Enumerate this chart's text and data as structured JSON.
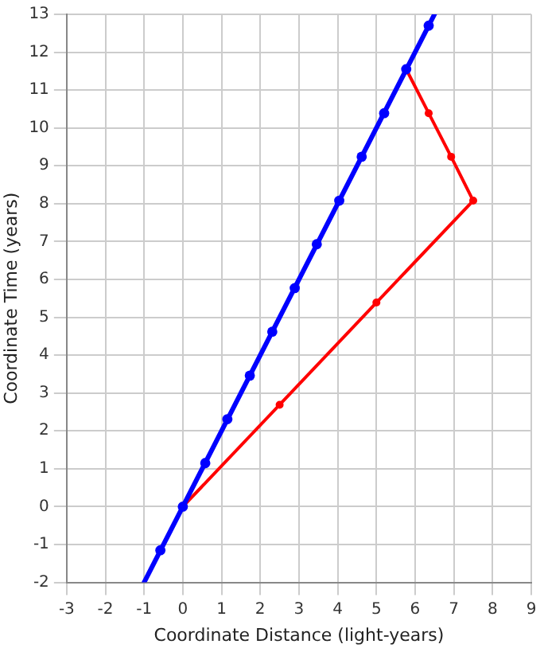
{
  "chart_data": {
    "type": "line",
    "xlabel": "Coordinate Distance (light-years)",
    "ylabel": "Coordinate Time (years)",
    "xlim": [
      -3,
      9
    ],
    "ylim": [
      -2,
      13
    ],
    "xticks": [
      -3,
      -2,
      -1,
      0,
      1,
      2,
      3,
      4,
      5,
      6,
      7,
      8,
      9
    ],
    "yticks": [
      -2,
      -1,
      0,
      1,
      2,
      3,
      4,
      5,
      6,
      7,
      8,
      9,
      10,
      11,
      12,
      13
    ],
    "grid": true,
    "legend": false,
    "marker": "circle",
    "line_style": "solid",
    "series": [
      {
        "color": "#0000ff",
        "x": [
          -1,
          6.5
        ],
        "values": [
          -2,
          13
        ],
        "marker": "none"
      },
      {
        "type": "scatter",
        "color": "#0000ff",
        "x": [
          -0.58,
          0,
          0.58,
          1.15,
          1.73,
          2.31,
          2.89,
          3.46,
          4.04,
          4.62,
          5.2,
          5.77,
          6.35
        ],
        "values": [
          -1.15,
          0,
          1.15,
          2.31,
          3.46,
          4.62,
          5.77,
          6.93,
          8.08,
          9.24,
          10.39,
          11.55,
          12.7
        ]
      },
      {
        "color": "#ff0000",
        "x": [
          0,
          2.5,
          5,
          7.5,
          6.93,
          6.35,
          5.77
        ],
        "values": [
          0,
          2.69,
          5.39,
          8.08,
          9.24,
          10.39,
          11.55
        ]
      }
    ]
  }
}
